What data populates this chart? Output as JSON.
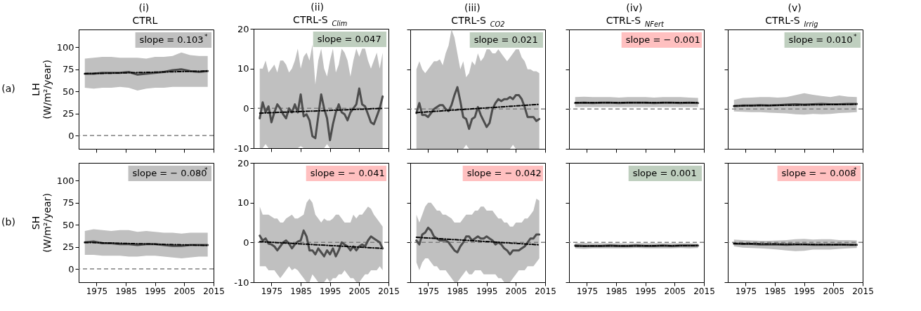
{
  "chart_data": [
    {
      "type": "line",
      "title": "(i)\nCTRL",
      "ylabel": "LH\n(W/m²/year)",
      "annotations": [
        "(a)",
        "slope = 0.103$^{*}$"
      ],
      "xlim": [
        1968.9,
        2015
      ],
      "xticks": [
        1975,
        1985,
        1995,
        2005,
        2015
      ],
      "ylim": [
        -15,
        120
      ],
      "yticks": [
        0,
        25,
        50,
        75,
        100
      ],
      "tick_labels": "y",
      "ref_lines": [
        {
          "axis": "y",
          "value": 0,
          "color": "#808080",
          "line_style": "dashed"
        }
      ],
      "series": [
        {
          "color": "#4d4d4d",
          "x": [
            1971,
            1974,
            1977,
            1980,
            1983,
            1986,
            1989,
            1992,
            1995,
            1998,
            2001,
            2004,
            2007,
            2010,
            2013
          ],
          "values": [
            70,
            70,
            71,
            71,
            71,
            72,
            69,
            70,
            71,
            72,
            74,
            75,
            73,
            72,
            73
          ],
          "lower": [
            54,
            53,
            54,
            54,
            55,
            54,
            51,
            53,
            54,
            54,
            55,
            55,
            55,
            55,
            55
          ],
          "upper": [
            87,
            88,
            89,
            89,
            88,
            88,
            88,
            87,
            89,
            89,
            90,
            94,
            91,
            90,
            90
          ]
        },
        {
          "type": "line",
          "color": "#000000",
          "line_style": "dashed",
          "x": [
            1971,
            2013
          ],
          "values": [
            70,
            73
          ]
        }
      ]
    },
    {
      "type": "line",
      "title": "(ii)\nCTRL-S$_{Clim}$",
      "annotations": [
        "slope = 0.047"
      ],
      "xlim": [
        1968.9,
        2015
      ],
      "xticks": [
        1975,
        1985,
        1995,
        2005,
        2015
      ],
      "ylim": [
        -10,
        20
      ],
      "yticks": [
        -10,
        0,
        10,
        20
      ],
      "tick_labels": "y",
      "ref_lines": [
        {
          "axis": "y",
          "value": 0,
          "color": "#808080",
          "line_style": "dashed"
        }
      ],
      "series": [
        {
          "color": "#4d4d4d",
          "x": [
            1971,
            1972,
            1973,
            1974,
            1975,
            1976,
            1977,
            1978,
            1979,
            1980,
            1981,
            1982,
            1983,
            1984,
            1985,
            1986,
            1987,
            1988,
            1989,
            1990,
            1991,
            1992,
            1993,
            1994,
            1995,
            1996,
            1997,
            1998,
            1999,
            2000,
            2001,
            2002,
            2003,
            2004,
            2005,
            2006,
            2007,
            2008,
            2009,
            2010,
            2011,
            2012,
            2013
          ],
          "values": [
            -2.5,
            1.5,
            -1,
            0.5,
            -3.5,
            -1,
            1,
            0,
            -1.5,
            -2.5,
            0,
            -1,
            1,
            -1,
            3.5,
            -2,
            -1.5,
            -3,
            -7,
            -7.5,
            -2,
            3.5,
            0,
            -2.5,
            -8,
            -4,
            -1,
            1,
            -1,
            -1.5,
            -3,
            -1,
            0,
            1,
            5,
            1,
            0.5,
            -1.5,
            -3.5,
            -4,
            -2,
            0,
            3
          ],
          "lower": [
            -10,
            -10,
            -9,
            -10,
            -10,
            -10,
            -10,
            -10,
            -10,
            -10,
            -10,
            -10,
            -10,
            -10,
            -9.5,
            -10,
            -10,
            -10,
            -10,
            -10,
            -10,
            -10,
            -10,
            -9,
            -10,
            -10,
            -10,
            -10,
            -10,
            -10,
            -10,
            -10,
            -10,
            -10,
            -10,
            -10,
            -10,
            -10,
            -10,
            -10,
            -10,
            -10,
            -10
          ],
          "upper": [
            10,
            10,
            12,
            9,
            10,
            11,
            9,
            12,
            12,
            11,
            9,
            10,
            12,
            15,
            10,
            13,
            14,
            12,
            16,
            6,
            12,
            15,
            10,
            8,
            12,
            15,
            9,
            11,
            15,
            14,
            12,
            8,
            12,
            15,
            13,
            15,
            15,
            12,
            10,
            12,
            14,
            10,
            14
          ]
        },
        {
          "type": "line",
          "color": "#000000",
          "line_style": "dashed",
          "x": [
            1971,
            2013
          ],
          "values": [
            -1.2,
            0
          ]
        }
      ]
    },
    {
      "type": "line",
      "title": "(iii)\nCTRL-S$_{CO2}$",
      "annotations": [
        "slope = 0.021"
      ],
      "xlim": [
        1968.9,
        2015
      ],
      "xticks": [
        1975,
        1985,
        1995,
        2005,
        2015
      ],
      "ylim": [
        -10,
        20
      ],
      "yticks": [
        -10,
        0,
        10,
        20
      ],
      "tick_labels": false,
      "ref_lines": [
        {
          "axis": "y",
          "value": 0,
          "color": "#808080",
          "line_style": "dashed"
        }
      ],
      "series": [
        {
          "color": "#4d4d4d",
          "x": [
            1971,
            1972,
            1973,
            1974,
            1975,
            1976,
            1977,
            1978,
            1979,
            1980,
            1981,
            1982,
            1983,
            1984,
            1985,
            1986,
            1987,
            1988,
            1989,
            1990,
            1991,
            1992,
            1993,
            1994,
            1995,
            1996,
            1997,
            1998,
            1999,
            2000,
            2001,
            2002,
            2003,
            2004,
            2005,
            2006,
            2007,
            2008,
            2009,
            2010,
            2011,
            2012,
            2013
          ],
          "values": [
            -1,
            1.5,
            -1.5,
            -1.5,
            -2,
            -1,
            0,
            0.5,
            1,
            1,
            0,
            -0.5,
            1,
            3.5,
            5.5,
            2,
            -2,
            -2.5,
            -5,
            -2.5,
            -2,
            0.5,
            -1.5,
            -3,
            -4.5,
            -3.5,
            0,
            1.5,
            2.5,
            2,
            2.5,
            2.5,
            3,
            2.5,
            3.5,
            3.5,
            2.5,
            0.5,
            -2,
            -2,
            -2,
            -3,
            -2.5
          ],
          "lower": [
            -10,
            -10,
            -10,
            -10,
            -10,
            -10,
            -10,
            -10,
            -10,
            -10,
            -10,
            -10,
            -10,
            -10,
            -10,
            -10,
            -10,
            -9,
            -10,
            -10,
            -10,
            -10,
            -10,
            -10,
            -10,
            -10,
            -10,
            -10,
            -10,
            -10,
            -10,
            -10,
            -10,
            -9,
            -10,
            -10,
            -10,
            -10,
            -10,
            -10,
            -10,
            -10,
            -10
          ],
          "upper": [
            10,
            12,
            10,
            9,
            10,
            11,
            12,
            12,
            12.5,
            11,
            14,
            16,
            20,
            18,
            14,
            10,
            12,
            8,
            9,
            12,
            11,
            14,
            12,
            13,
            15,
            15,
            14,
            14,
            15,
            14,
            13,
            12,
            13,
            14,
            15,
            15,
            13,
            12,
            10,
            10,
            9.5,
            9.5,
            9
          ]
        },
        {
          "type": "line",
          "color": "#000000",
          "line_style": "dashed",
          "x": [
            1971,
            2013
          ],
          "values": [
            -0.9,
            1.2
          ]
        }
      ]
    },
    {
      "type": "line",
      "title": "(iv)\nCTRL-S$_{NFert}$",
      "annotations": [
        "slope = − 0.001"
      ],
      "xlim": [
        1968.9,
        2015
      ],
      "xticks": [
        1975,
        1985,
        1995,
        2005,
        2015
      ],
      "ylim": [
        -10,
        20
      ],
      "yticks": [
        -10,
        0,
        10,
        20
      ],
      "tick_labels": false,
      "ref_lines": [
        {
          "axis": "y",
          "value": 0,
          "color": "#808080",
          "line_style": "dashed"
        }
      ],
      "series": [
        {
          "color": "#4d4d4d",
          "x": [
            1971,
            1974,
            1977,
            1980,
            1983,
            1986,
            1989,
            1992,
            1995,
            1998,
            2001,
            2004,
            2007,
            2010,
            2013
          ],
          "values": [
            1.5,
            1.6,
            1.5,
            1.6,
            1.6,
            1.5,
            1.6,
            1.6,
            1.6,
            1.5,
            1.6,
            1.6,
            1.5,
            1.6,
            1.5
          ],
          "lower": [
            0.5,
            0.5,
            0.5,
            0.5,
            0.5,
            0.5,
            0.5,
            0.5,
            0.5,
            0.5,
            0.5,
            0.5,
            0.5,
            0.5,
            0.5
          ],
          "upper": [
            3,
            3.1,
            3,
            3,
            3,
            2.9,
            3,
            3,
            3,
            2.9,
            3,
            3,
            3,
            2.9,
            2.8
          ]
        },
        {
          "type": "line",
          "color": "#000000",
          "line_style": "dashed",
          "x": [
            1971,
            2013
          ],
          "values": [
            1.6,
            1.6
          ]
        }
      ]
    },
    {
      "type": "line",
      "title": "(v)\nCTRL-S$_{Irrig}$",
      "annotations": [
        "slope = 0.010$^{*}$"
      ],
      "xlim": [
        1968.9,
        2015
      ],
      "xticks": [
        1975,
        1985,
        1995,
        2005,
        2015
      ],
      "ylim": [
        -10,
        20
      ],
      "yticks": [
        -10,
        0,
        10,
        20
      ],
      "tick_labels": false,
      "ref_lines": [
        {
          "axis": "y",
          "value": 0,
          "color": "#808080",
          "line_style": "dashed"
        }
      ],
      "series": [
        {
          "color": "#4d4d4d",
          "x": [
            1971,
            1974,
            1977,
            1980,
            1983,
            1986,
            1989,
            1992,
            1995,
            1998,
            2001,
            2004,
            2007,
            2010,
            2013
          ],
          "values": [
            0.7,
            0.9,
            0.9,
            1,
            0.9,
            1,
            1.1,
            1.2,
            1.1,
            1.2,
            1.3,
            1.2,
            1.2,
            1.3,
            1.3
          ],
          "lower": [
            -0.6,
            -0.7,
            -0.8,
            -0.8,
            -0.9,
            -1,
            -1.1,
            -1.3,
            -1.4,
            -1.2,
            -1.3,
            -1.2,
            -1,
            -0.9,
            -0.8
          ],
          "upper": [
            2.3,
            2.8,
            2.9,
            3,
            3,
            2.9,
            3,
            3.5,
            4,
            3.6,
            3.3,
            3,
            3.4,
            3.1,
            3
          ]
        },
        {
          "type": "line",
          "color": "#000000",
          "line_style": "dashed",
          "x": [
            1971,
            2013
          ],
          "values": [
            0.8,
            1.2
          ]
        }
      ]
    },
    {
      "type": "line",
      "ylabel": "SH\n(W/m²/year)",
      "annotations": [
        "(b)",
        "slope = − 0.080$^{*}$"
      ],
      "xlim": [
        1968.9,
        2015
      ],
      "xticks": [
        1975,
        1985,
        1995,
        2005,
        2015
      ],
      "ylim": [
        -15,
        120
      ],
      "yticks": [
        0,
        25,
        50,
        75,
        100
      ],
      "ref_lines": [
        {
          "axis": "y",
          "value": 0,
          "color": "#808080",
          "line_style": "dashed"
        }
      ],
      "series": [
        {
          "color": "#4d4d4d",
          "x": [
            1971,
            1974,
            1977,
            1980,
            1983,
            1986,
            1989,
            1992,
            1995,
            1998,
            2001,
            2004,
            2007,
            2010,
            2013
          ],
          "values": [
            30,
            31,
            29,
            29,
            28,
            28,
            27,
            28,
            28,
            27,
            26,
            26,
            27,
            27,
            27
          ],
          "lower": [
            16,
            16,
            15,
            15,
            15,
            14,
            14,
            15,
            15,
            14,
            13,
            12,
            13,
            14,
            14
          ],
          "upper": [
            43,
            45,
            44,
            43,
            44,
            44,
            42,
            43,
            42,
            41,
            41,
            40,
            41,
            41,
            41
          ]
        },
        {
          "type": "line",
          "color": "#000000",
          "line_style": "dashed",
          "x": [
            1971,
            2013
          ],
          "values": [
            30,
            26.6
          ]
        }
      ]
    },
    {
      "type": "line",
      "annotations": [
        "slope = − 0.041"
      ],
      "xlim": [
        1968.9,
        2015
      ],
      "xticks": [
        1975,
        1985,
        1995,
        2005,
        2015
      ],
      "ylim": [
        -10,
        20
      ],
      "yticks": [
        -10,
        0,
        10,
        20
      ],
      "ref_lines": [
        {
          "axis": "y",
          "value": 0,
          "color": "#808080",
          "line_style": "dashed"
        }
      ],
      "series": [
        {
          "color": "#4d4d4d",
          "x": [
            1971,
            1972,
            1973,
            1974,
            1975,
            1976,
            1977,
            1978,
            1979,
            1980,
            1981,
            1982,
            1983,
            1984,
            1985,
            1986,
            1987,
            1988,
            1989,
            1990,
            1991,
            1992,
            1993,
            1994,
            1995,
            1996,
            1997,
            1998,
            1999,
            2000,
            2001,
            2002,
            2003,
            2004,
            2005,
            2006,
            2007,
            2008,
            2009,
            2010,
            2011,
            2012,
            2013
          ],
          "values": [
            1.7,
            0.5,
            1,
            -0.3,
            -0.5,
            -1,
            -2,
            -1,
            0,
            0.5,
            -0.3,
            -1.5,
            -0.5,
            0.2,
            0.5,
            3,
            1.5,
            -2,
            -2,
            -3,
            -1.5,
            -2.5,
            -3.5,
            -2,
            -3,
            -1.5,
            -3.5,
            -2,
            0,
            -0.5,
            -1,
            -2,
            -1,
            -2,
            -1,
            -0.5,
            -1,
            0.5,
            1.5,
            1,
            0.5,
            0,
            -1.5
          ],
          "lower": [
            -6,
            -6,
            -6,
            -7,
            -7,
            -7,
            -8,
            -9,
            -8,
            -7,
            -6,
            -7,
            -6.5,
            -7,
            -8,
            -9,
            -10,
            -10,
            -8,
            -9,
            -10,
            -10,
            -10,
            -9,
            -10,
            -9,
            -9,
            -8,
            -8,
            -7,
            -8,
            -9,
            -9,
            -10,
            -10,
            -9,
            -8,
            -8,
            -7,
            -7,
            -7,
            -6,
            -7
          ],
          "upper": [
            9,
            7,
            7,
            7,
            6.5,
            6,
            6,
            5,
            5,
            6,
            6.5,
            7,
            6,
            6,
            6.5,
            7,
            10,
            11,
            10,
            7,
            6,
            5,
            6,
            5.5,
            5.5,
            6,
            7,
            7,
            6,
            5,
            5,
            5,
            7,
            6,
            7,
            7,
            8,
            9,
            8.5,
            7,
            6,
            5,
            4
          ]
        },
        {
          "type": "line",
          "color": "#000000",
          "line_style": "dashed",
          "x": [
            1971,
            2013
          ],
          "values": [
            0.2,
            -1.5
          ]
        }
      ]
    },
    {
      "type": "line",
      "annotations": [
        "slope = − 0.042"
      ],
      "xlim": [
        1968.9,
        2015
      ],
      "xticks": [
        1975,
        1985,
        1995,
        2005,
        2015
      ],
      "ylim": [
        -10,
        20
      ],
      "yticks": [
        -10,
        0,
        10,
        20
      ],
      "tick_labels": "x",
      "ref_lines": [
        {
          "axis": "y",
          "value": 0,
          "color": "#808080",
          "line_style": "dashed"
        }
      ],
      "series": [
        {
          "color": "#4d4d4d",
          "x": [
            1971,
            1972,
            1973,
            1974,
            1975,
            1976,
            1977,
            1978,
            1979,
            1980,
            1981,
            1982,
            1983,
            1984,
            1985,
            1986,
            1987,
            1988,
            1989,
            1990,
            1991,
            1992,
            1993,
            1994,
            1995,
            1996,
            1997,
            1998,
            1999,
            2000,
            2001,
            2002,
            2003,
            2004,
            2005,
            2006,
            2007,
            2008,
            2009,
            2010,
            2011,
            2012,
            2013
          ],
          "values": [
            0.5,
            -0.5,
            2,
            2.5,
            3.7,
            3,
            1.5,
            1,
            0.5,
            0.5,
            0.5,
            0,
            -1,
            -2,
            -2.5,
            -1,
            0,
            1.5,
            1.5,
            0.5,
            1,
            1.5,
            1,
            1,
            1.5,
            1,
            0.5,
            -0.5,
            0,
            -0.5,
            -1.5,
            -2,
            -3,
            -2,
            -2,
            -2,
            -1.5,
            -1,
            0,
            1,
            1,
            2,
            2
          ],
          "lower": [
            -5,
            -7,
            -5,
            -4,
            -4,
            -5,
            -6,
            -6,
            -7,
            -7,
            -7,
            -8,
            -9,
            -10,
            -10,
            -9,
            -8,
            -7,
            -8,
            -8,
            -7,
            -7,
            -7,
            -8,
            -8,
            -8,
            -8,
            -8,
            -9,
            -9,
            -10,
            -10,
            -10,
            -9,
            -8,
            -7,
            -7,
            -7,
            -6,
            -6,
            -6,
            -5,
            -4
          ],
          "upper": [
            7,
            5,
            7,
            9,
            10,
            10,
            9,
            8,
            8,
            7,
            7,
            6.5,
            6,
            5,
            5,
            5,
            6,
            7,
            7,
            7,
            8,
            8,
            9,
            9,
            8,
            8,
            8,
            7,
            6,
            6,
            5,
            5,
            4,
            4,
            5,
            5,
            5,
            6,
            6,
            7,
            8,
            11,
            10.5
          ]
        },
        {
          "type": "line",
          "color": "#000000",
          "line_style": "dashed",
          "x": [
            1971,
            2013
          ],
          "values": [
            1.3,
            -0.6
          ]
        }
      ]
    },
    {
      "type": "line",
      "annotations": [
        "slope = 0.001"
      ],
      "xlim": [
        1968.9,
        2015
      ],
      "xticks": [
        1975,
        1985,
        1995,
        2005,
        2015
      ],
      "ylim": [
        -10,
        20
      ],
      "yticks": [
        -10,
        0,
        10,
        20
      ],
      "tick_labels": "x",
      "ref_lines": [
        {
          "axis": "y",
          "value": 0,
          "color": "#808080",
          "line_style": "dashed"
        }
      ],
      "series": [
        {
          "color": "#4d4d4d",
          "x": [
            1971,
            1974,
            1977,
            1980,
            1983,
            1986,
            1989,
            1992,
            1995,
            1998,
            2001,
            2004,
            2007,
            2010,
            2013
          ],
          "values": [
            -0.8,
            -0.9,
            -0.9,
            -0.9,
            -0.8,
            -0.9,
            -0.9,
            -0.8,
            -0.9,
            -0.9,
            -0.8,
            -0.9,
            -0.8,
            -0.8,
            -0.8
          ],
          "lower": [
            -1.5,
            -1.6,
            -1.5,
            -1.5,
            -1.5,
            -1.5,
            -1.5,
            -1.4,
            -1.5,
            -1.5,
            -1.5,
            -1.5,
            -1.4,
            -1.5,
            -1.4
          ],
          "upper": [
            -0.2,
            -0.1,
            -0.2,
            -0.2,
            -0.2,
            -0.2,
            -0.3,
            -0.2,
            -0.2,
            -0.2,
            -0.2,
            -0.2,
            -0.2,
            -0.2,
            -0.3
          ]
        },
        {
          "type": "line",
          "color": "#000000",
          "line_style": "dashed",
          "x": [
            1971,
            2013
          ],
          "values": [
            -0.9,
            -0.8
          ]
        }
      ]
    },
    {
      "type": "line",
      "annotations": [
        "slope = − 0.008$^{*}$"
      ],
      "xlim": [
        1968.9,
        2015
      ],
      "xticks": [
        1975,
        1985,
        1995,
        2005,
        2015
      ],
      "ylim": [
        -10,
        20
      ],
      "yticks": [
        -10,
        0,
        10,
        20
      ],
      "tick_labels": "x",
      "ref_lines": [
        {
          "axis": "y",
          "value": 0,
          "color": "#808080",
          "line_style": "dashed"
        }
      ],
      "series": [
        {
          "color": "#4d4d4d",
          "x": [
            1971,
            1974,
            1977,
            1980,
            1983,
            1986,
            1989,
            1992,
            1995,
            1998,
            2001,
            2004,
            2007,
            2010,
            2013
          ],
          "values": [
            -0.3,
            -0.4,
            -0.4,
            -0.5,
            -0.5,
            -0.5,
            -0.6,
            -0.5,
            -0.5,
            -0.6,
            -0.6,
            -0.6,
            -0.5,
            -0.6,
            -0.6
          ],
          "lower": [
            -1,
            -1.3,
            -1.4,
            -1.5,
            -1.6,
            -1.8,
            -2,
            -2.2,
            -2.1,
            -1.8,
            -1.8,
            -1.8,
            -1.6,
            -1.5,
            -1.4
          ],
          "upper": [
            0.7,
            0.6,
            0.5,
            0.4,
            0.4,
            0.5,
            0.6,
            0.8,
            0.9,
            0.7,
            0.8,
            0.8,
            0.6,
            0.6,
            0.5
          ]
        },
        {
          "type": "line",
          "color": "#000000",
          "line_style": "dashed",
          "x": [
            1971,
            2013
          ],
          "values": [
            -0.3,
            -0.6
          ]
        }
      ]
    }
  ]
}
